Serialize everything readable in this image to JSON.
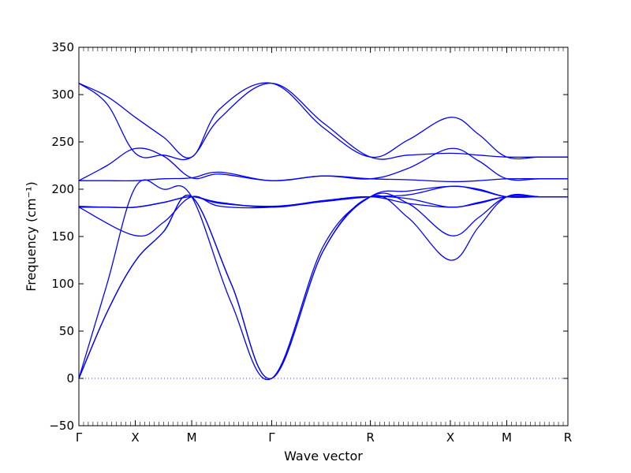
{
  "chart_data": {
    "type": "line",
    "title": "",
    "xlabel": "Wave vector",
    "ylabel": "Frequency (cm⁻¹)",
    "ylim": [
      -50,
      350
    ],
    "yticks": [
      -50,
      0,
      50,
      100,
      150,
      200,
      250,
      300,
      350
    ],
    "xlim": [
      0,
      5.2
    ],
    "xticks": [
      {
        "label": "Γ",
        "x": 0
      },
      {
        "label": "X",
        "x": 0.6
      },
      {
        "label": "M",
        "x": 1.2
      },
      {
        "label": "Γ",
        "x": 2.05
      },
      {
        "label": "R",
        "x": 3.1
      },
      {
        "label": "X",
        "x": 3.95
      },
      {
        "label": "M",
        "x": 4.55
      },
      {
        "label": "R",
        "x": 5.2
      }
    ],
    "zero_line": {
      "y": 0,
      "style": "dotted"
    },
    "grid": false,
    "legend": "none",
    "line_color": "#0000ff",
    "series": [
      {
        "x": [
          0,
          0.3,
          0.6,
          0.9,
          1.2,
          1.62,
          2.05,
          2.6,
          3.1,
          3.5,
          3.95,
          4.25,
          4.55,
          4.9,
          5.2
        ],
        "y": [
          0,
          70,
          124,
          155,
          192,
          100,
          0,
          135,
          192,
          170,
          125,
          160,
          192,
          192,
          192
        ]
      },
      {
        "x": [
          0,
          0.3,
          0.6,
          0.9,
          1.2,
          1.62,
          2.05,
          2.6,
          3.1,
          3.5,
          3.95,
          4.25,
          4.55,
          4.9,
          5.2
        ],
        "y": [
          0,
          70,
          124,
          155,
          192,
          100,
          0,
          135,
          192,
          185,
          151,
          170,
          192,
          192,
          192
        ]
      },
      {
        "x": [
          0,
          0.3,
          0.6,
          0.9,
          1.2,
          1.62,
          2.05,
          2.6,
          3.1,
          3.5,
          3.95,
          4.25,
          4.55,
          4.9,
          5.2
        ],
        "y": [
          0,
          100,
          202,
          200,
          192,
          80,
          0,
          140,
          192,
          198,
          203,
          200,
          192,
          192,
          192
        ]
      },
      {
        "x": [
          0,
          0.6,
          0.9,
          1.2,
          1.5,
          2.05,
          2.6,
          3.1,
          3.5,
          3.95,
          4.25,
          4.55,
          4.9,
          5.2
        ],
        "y": [
          181,
          151,
          165,
          192,
          182,
          181,
          188,
          192,
          185,
          181,
          185,
          192,
          192,
          192
        ]
      },
      {
        "x": [
          0,
          0.3,
          0.6,
          0.9,
          1.2,
          1.5,
          2.05,
          2.6,
          3.1,
          3.5,
          3.95,
          4.25,
          4.55,
          4.9,
          5.2
        ],
        "y": [
          181,
          181,
          181,
          186,
          192,
          186,
          181,
          187,
          192,
          194,
          203,
          199,
          192,
          192,
          192
        ]
      },
      {
        "x": [
          0,
          0.3,
          0.6,
          0.9,
          1.2,
          1.5,
          2.05,
          2.6,
          3.1,
          3.5,
          3.95,
          4.25,
          4.55,
          4.9,
          5.2
        ],
        "y": [
          182,
          181,
          181,
          186,
          192,
          185,
          182,
          187,
          192,
          190,
          181,
          186,
          192,
          192,
          192
        ]
      },
      {
        "x": [
          0,
          0.3,
          0.6,
          0.9,
          1.2,
          1.5,
          2.05,
          2.6,
          3.1,
          3.5,
          3.95,
          4.25,
          4.55,
          4.9,
          5.2
        ],
        "y": [
          209,
          225,
          243,
          235,
          212,
          216,
          209,
          214,
          211,
          222,
          243,
          230,
          211,
          211,
          211
        ]
      },
      {
        "x": [
          0,
          0.3,
          0.6,
          0.9,
          1.2,
          1.5,
          2.05,
          2.6,
          3.1,
          3.5,
          3.95,
          4.25,
          4.55,
          4.9,
          5.2
        ],
        "y": [
          209,
          209,
          209,
          211,
          212,
          218,
          209,
          214,
          211,
          210,
          208,
          209,
          211,
          211,
          211
        ]
      },
      {
        "x": [
          0,
          0.3,
          0.6,
          0.9,
          1.2,
          1.5,
          2.05,
          2.6,
          3.1,
          3.5,
          3.95,
          4.25,
          4.55,
          4.9,
          5.2
        ],
        "y": [
          312,
          290,
          238,
          236,
          234,
          275,
          312,
          270,
          234,
          236,
          238,
          236,
          234,
          234,
          234
        ]
      },
      {
        "x": [
          0,
          0.3,
          0.6,
          0.9,
          1.2,
          1.5,
          2.05,
          2.6,
          3.1,
          3.5,
          3.95,
          4.25,
          4.55,
          4.9,
          5.2
        ],
        "y": [
          312,
          298,
          276,
          255,
          234,
          285,
          312,
          265,
          234,
          252,
          276,
          258,
          234,
          234,
          234
        ]
      }
    ]
  }
}
